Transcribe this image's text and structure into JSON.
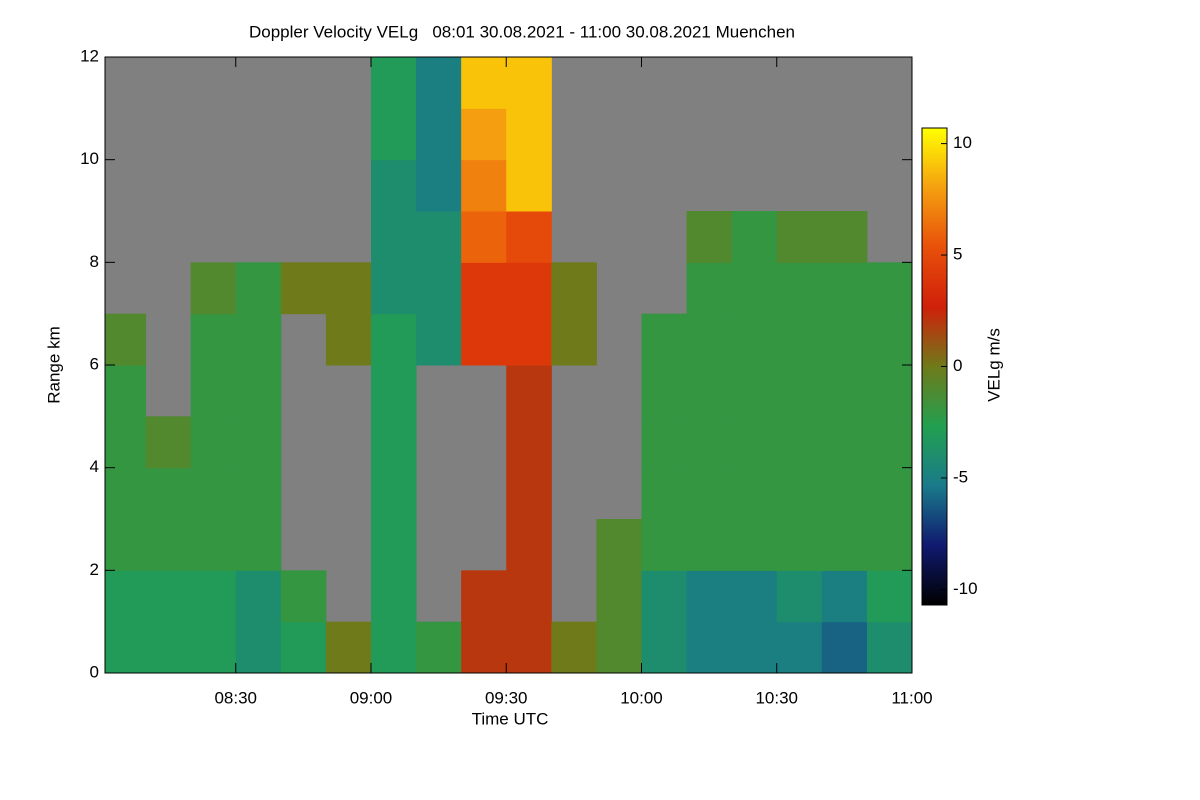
{
  "chart_data": {
    "type": "heatmap",
    "title": "Doppler Velocity VELg   08:01 30.08.2021 - 11:00 30.08.2021 Muenchen",
    "x_label": "Time UTC",
    "y_label": "Range km",
    "colorbar_label": "VELg m/s",
    "xlim": [
      "08:01",
      "11:00"
    ],
    "xticks": [
      "08:30",
      "09:00",
      "09:30",
      "10:00",
      "10:30",
      "11:00"
    ],
    "ylim": [
      0,
      12
    ],
    "yticks": [
      0,
      2,
      4,
      6,
      8,
      10,
      12
    ],
    "vlim": [
      -10.7,
      10.7
    ],
    "vticks": [
      -10,
      -5,
      0,
      5,
      10
    ],
    "colormap": [
      "#000000",
      "#101a70",
      "#1a7a8a",
      "#22a050",
      "#6f7a1a",
      "#d0200a",
      "#e8500a",
      "#f5a010",
      "#ffff00"
    ],
    "missing_color": "#808080",
    "x_bins": [
      "08:00",
      "08:10",
      "08:20",
      "08:30",
      "08:40",
      "08:50",
      "09:00",
      "09:10",
      "09:20",
      "09:30",
      "09:40",
      "09:50",
      "10:00",
      "10:10",
      "10:20",
      "10:30",
      "10:40",
      "10:50",
      "11:00"
    ],
    "y_bins": [
      0,
      1,
      2,
      3,
      4,
      5,
      6,
      7,
      8,
      9,
      10,
      11,
      12
    ],
    "values": [
      [
        -3,
        -3,
        -3,
        -4,
        -3,
        0,
        -3,
        -2,
        2,
        2,
        0,
        -1,
        -4,
        -5,
        -5,
        -5,
        -6,
        -4
      ],
      [
        -3,
        -3,
        -3,
        -4,
        -2,
        null,
        -3,
        null,
        2,
        2,
        null,
        -1,
        -4,
        -5,
        -5,
        -4,
        -5,
        -3
      ],
      [
        -2,
        -2,
        -2,
        -2,
        null,
        null,
        -3,
        null,
        null,
        2,
        null,
        -1,
        -2,
        -2,
        -2,
        -2,
        -2,
        -2
      ],
      [
        -2,
        -2,
        -2,
        -2,
        null,
        null,
        -3,
        null,
        null,
        2,
        null,
        null,
        -2,
        -2,
        -2,
        -2,
        -2,
        -2
      ],
      [
        -2,
        -1,
        -2,
        -2,
        null,
        null,
        -3,
        null,
        null,
        2,
        null,
        null,
        -2,
        -2,
        -2,
        -2,
        -2,
        -2
      ],
      [
        -2,
        null,
        -2,
        -2,
        null,
        null,
        -3,
        null,
        null,
        2,
        null,
        null,
        -2,
        -2,
        -2,
        -2,
        -2,
        -2
      ],
      [
        -1,
        null,
        -2,
        -2,
        null,
        0,
        -3,
        -4,
        4,
        4,
        0,
        null,
        -2,
        -2,
        -2,
        -2,
        -2,
        -2
      ],
      [
        null,
        null,
        -1,
        -2,
        0,
        0,
        -4,
        -4,
        4,
        4,
        0,
        null,
        null,
        -2,
        -2,
        -2,
        -2,
        -2
      ],
      [
        null,
        null,
        null,
        null,
        null,
        null,
        -4,
        -4,
        6,
        5,
        null,
        null,
        null,
        -1,
        -2,
        -1,
        -1,
        null
      ],
      [
        null,
        null,
        null,
        null,
        null,
        null,
        -4,
        -5,
        7,
        9,
        null,
        null,
        null,
        null,
        null,
        null,
        null,
        null
      ],
      [
        null,
        null,
        null,
        null,
        null,
        null,
        -3,
        -5,
        8,
        9,
        null,
        null,
        null,
        null,
        null,
        null,
        null,
        null
      ],
      [
        null,
        null,
        null,
        null,
        null,
        null,
        -3,
        -5,
        9,
        9,
        null,
        null,
        null,
        null,
        null,
        null,
        null,
        null
      ]
    ]
  }
}
